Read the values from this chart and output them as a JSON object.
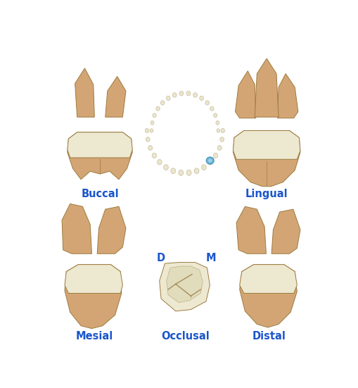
{
  "labels": {
    "buccal": "Buccal",
    "lingual": "Lingual",
    "mesial": "Mesial",
    "distal": "Distal",
    "occlusal": "Occlusal",
    "D": "D",
    "M": "M"
  },
  "label_color": "#1a55cc",
  "label_fontsize": 10.5,
  "dm_fontsize": 10.5,
  "colors": {
    "root_tan": "#D4A574",
    "root_tan2": "#C89060",
    "crown_cream": "#EDE8D0",
    "crown_cream2": "#F5F0DC",
    "outline": "#9B7B40",
    "arch_tooth": "#EAE5CC",
    "arch_outline": "#C8BEA0",
    "highlight_blue": "#72C4E0",
    "highlight_blue2": "#3A8CB8",
    "background": "#FFFFFF",
    "groove": "#B0984A"
  },
  "figsize": [
    5.1,
    5.51
  ],
  "dpi": 100
}
